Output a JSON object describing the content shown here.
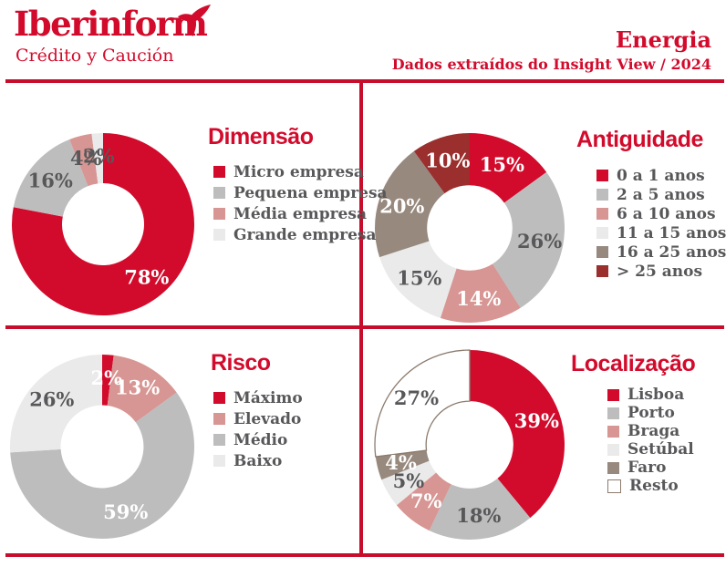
{
  "header": {
    "logo_name": "Iberinform",
    "logo_tagline": "Crédito y Caución",
    "sector_title": "Energia",
    "subtitle": "Dados extraídos do Insight View / 2024"
  },
  "colors": {
    "brand_red": "#d20b2c",
    "rule_red": "#c60e2c",
    "text_dark": "#58585a",
    "gray": "#bdbdbd",
    "pink": "#d79693",
    "light_gray": "#eaeaea",
    "taupe": "#97897e",
    "maroon": "#9a2f2e",
    "resto_outline": "#8c7b6e",
    "label_white": "#ffffff"
  },
  "chart_data": [
    {
      "type": "pie",
      "title": "Dimensão",
      "legend_position": "right",
      "slices": [
        {
          "label": "Micro empresa",
          "value": 78,
          "value_label": "78%",
          "color": "#d20b2c",
          "value_color": "#ffffff"
        },
        {
          "label": "Pequena empresa",
          "value": 16,
          "value_label": "16%",
          "color": "#bdbdbd",
          "value_color": "#58585a"
        },
        {
          "label": "Média empresa",
          "value": 4,
          "value_label": "4%",
          "color": "#d79693",
          "value_color": "#58585a"
        },
        {
          "label": "Grande empresa",
          "value": 2,
          "value_label": "2%",
          "color": "#eaeaea",
          "value_color": "#58585a"
        }
      ]
    },
    {
      "type": "pie",
      "title": "Antiguidade",
      "legend_position": "right",
      "slices": [
        {
          "label": "0 a 1 anos",
          "value": 15,
          "value_label": "15%",
          "color": "#d20b2c",
          "value_color": "#ffffff"
        },
        {
          "label": "2 a 5 anos",
          "value": 26,
          "value_label": "26%",
          "color": "#bdbdbd",
          "value_color": "#58585a"
        },
        {
          "label": "6 a 10 anos",
          "value": 14,
          "value_label": "14%",
          "color": "#d79693",
          "value_color": "#ffffff"
        },
        {
          "label": "11 a 15 anos",
          "value": 15,
          "value_label": "15%",
          "color": "#eaeaea",
          "value_color": "#58585a"
        },
        {
          "label": "16 a 25 anos",
          "value": 20,
          "value_label": "20%",
          "color": "#97897e",
          "value_color": "#ffffff"
        },
        {
          "label": "> 25 anos",
          "value": 10,
          "value_label": "10%",
          "color": "#9a2f2e",
          "value_color": "#ffffff"
        }
      ]
    },
    {
      "type": "pie",
      "title": "Risco",
      "legend_position": "right",
      "slices": [
        {
          "label": "Máximo",
          "value": 2,
          "value_label": "2%",
          "color": "#d20b2c",
          "value_color": "#ffffff"
        },
        {
          "label": "Elevado",
          "value": 13,
          "value_label": "13%",
          "color": "#d79693",
          "value_color": "#ffffff"
        },
        {
          "label": "Médio",
          "value": 59,
          "value_label": "59%",
          "color": "#bdbdbd",
          "value_color": "#ffffff"
        },
        {
          "label": "Baixo",
          "value": 26,
          "value_label": "26%",
          "color": "#eaeaea",
          "value_color": "#58585a"
        }
      ]
    },
    {
      "type": "pie",
      "title": "Localização",
      "legend_position": "right",
      "slices": [
        {
          "label": "Lisboa",
          "value": 39,
          "value_label": "39%",
          "color": "#d20b2c",
          "value_color": "#ffffff"
        },
        {
          "label": "Porto",
          "value": 18,
          "value_label": "18%",
          "color": "#bdbdbd",
          "value_color": "#58585a"
        },
        {
          "label": "Braga",
          "value": 7,
          "value_label": "7%",
          "color": "#d79693",
          "value_color": "#ffffff"
        },
        {
          "label": "Setúbal",
          "value": 5,
          "value_label": "5%",
          "color": "#eaeaea",
          "value_color": "#58585a"
        },
        {
          "label": "Faro",
          "value": 4,
          "value_label": "4%",
          "color": "#97897e",
          "value_color": "#ffffff"
        },
        {
          "label": "Resto",
          "value": 27,
          "value_label": "27%",
          "color": "#ffffff",
          "value_color": "#58585a",
          "outlined": true
        }
      ]
    }
  ]
}
